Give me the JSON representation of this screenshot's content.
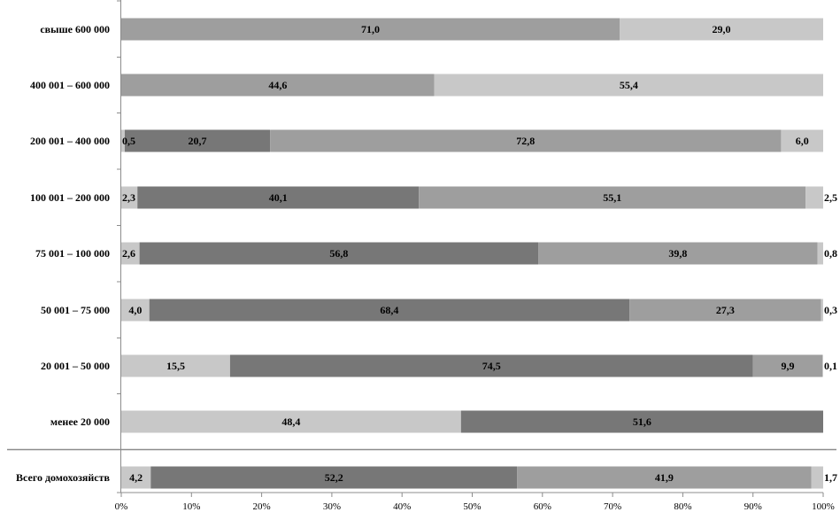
{
  "chart_data": {
    "type": "bar",
    "orientation": "horizontal",
    "stacked": true,
    "percent_stacked": true,
    "categories": [
      "свыше 600 000",
      "400 001 – 600 000",
      "200 001 – 400 000",
      "100 001 – 200 000",
      "75 001 – 100 000",
      "50 001 – 75 000",
      "20 001 – 50 000",
      "менее 20 000",
      "Всего домохозяйств"
    ],
    "series": [
      {
        "color": "#c8c8c8",
        "values": [
          null,
          null,
          0.5,
          2.3,
          2.6,
          4.0,
          15.5,
          48.4,
          4.2
        ]
      },
      {
        "color": "#777777",
        "values": [
          null,
          null,
          20.7,
          40.1,
          56.8,
          68.4,
          74.5,
          51.6,
          52.2
        ]
      },
      {
        "color": "#9e9e9e",
        "values": [
          71.0,
          44.6,
          72.8,
          55.1,
          39.8,
          27.3,
          9.9,
          null,
          41.9
        ]
      },
      {
        "color": "#c8c8c8",
        "values": [
          29.0,
          55.4,
          6.0,
          2.5,
          0.8,
          0.3,
          0.1,
          null,
          1.7
        ]
      }
    ],
    "data_labels": [
      [
        "",
        "",
        "71,0",
        "29,0"
      ],
      [
        "",
        "",
        "44,6",
        "55,4"
      ],
      [
        "0,5",
        "20,7",
        "72,8",
        "6,0"
      ],
      [
        "2,3",
        "40,1",
        "55,1",
        "2,5"
      ],
      [
        "2,6",
        "56,8",
        "39,8",
        "0,8"
      ],
      [
        "4,0",
        "68,4",
        "27,3",
        "0,3"
      ],
      [
        "15,5",
        "74,5",
        "9,9",
        "0,1"
      ],
      [
        "48,4",
        "51,6",
        "",
        ""
      ],
      [
        "4,2",
        "52,2",
        "41,9",
        "1,7"
      ]
    ],
    "x_ticks": [
      "0%",
      "10%",
      "20%",
      "30%",
      "40%",
      "50%",
      "60%",
      "70%",
      "80%",
      "90%",
      "100%"
    ],
    "xlim": [
      0,
      100
    ],
    "grid": false,
    "title": "",
    "xlabel": "",
    "ylabel": ""
  }
}
